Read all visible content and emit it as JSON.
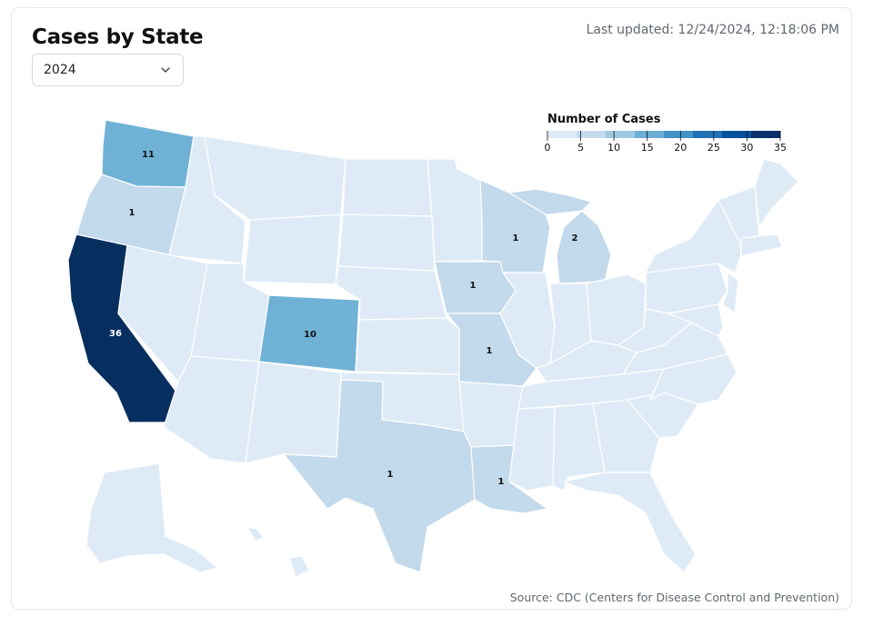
{
  "header": {
    "title": "Cases by State",
    "last_updated": "Last updated: 12/24/2024, 12:18:06 PM"
  },
  "year_select": {
    "value": "2024",
    "icon": "chevron-down-icon"
  },
  "legend": {
    "title": "Number of Cases",
    "ticks": [
      "0",
      "5",
      "10",
      "15",
      "20",
      "25",
      "30",
      "35"
    ],
    "colors": [
      "#deebf7",
      "#c6dbef",
      "#9ecae1",
      "#6baed6",
      "#4292c6",
      "#2171b5",
      "#08519c",
      "#08306b"
    ]
  },
  "state_values": {
    "CA": "36",
    "WA": "11",
    "CO": "10",
    "MI": "2",
    "OR": "1",
    "WI": "1",
    "IA": "1",
    "MO": "1",
    "TX": "1",
    "LA": "1"
  },
  "colors": {
    "zero": "#deebf7",
    "low": "#c3d9ec",
    "mid": "#6fb2d6",
    "high": "#062f5f"
  },
  "footer": {
    "source": "Source: CDC (Centers for Disease Control and Prevention)"
  }
}
